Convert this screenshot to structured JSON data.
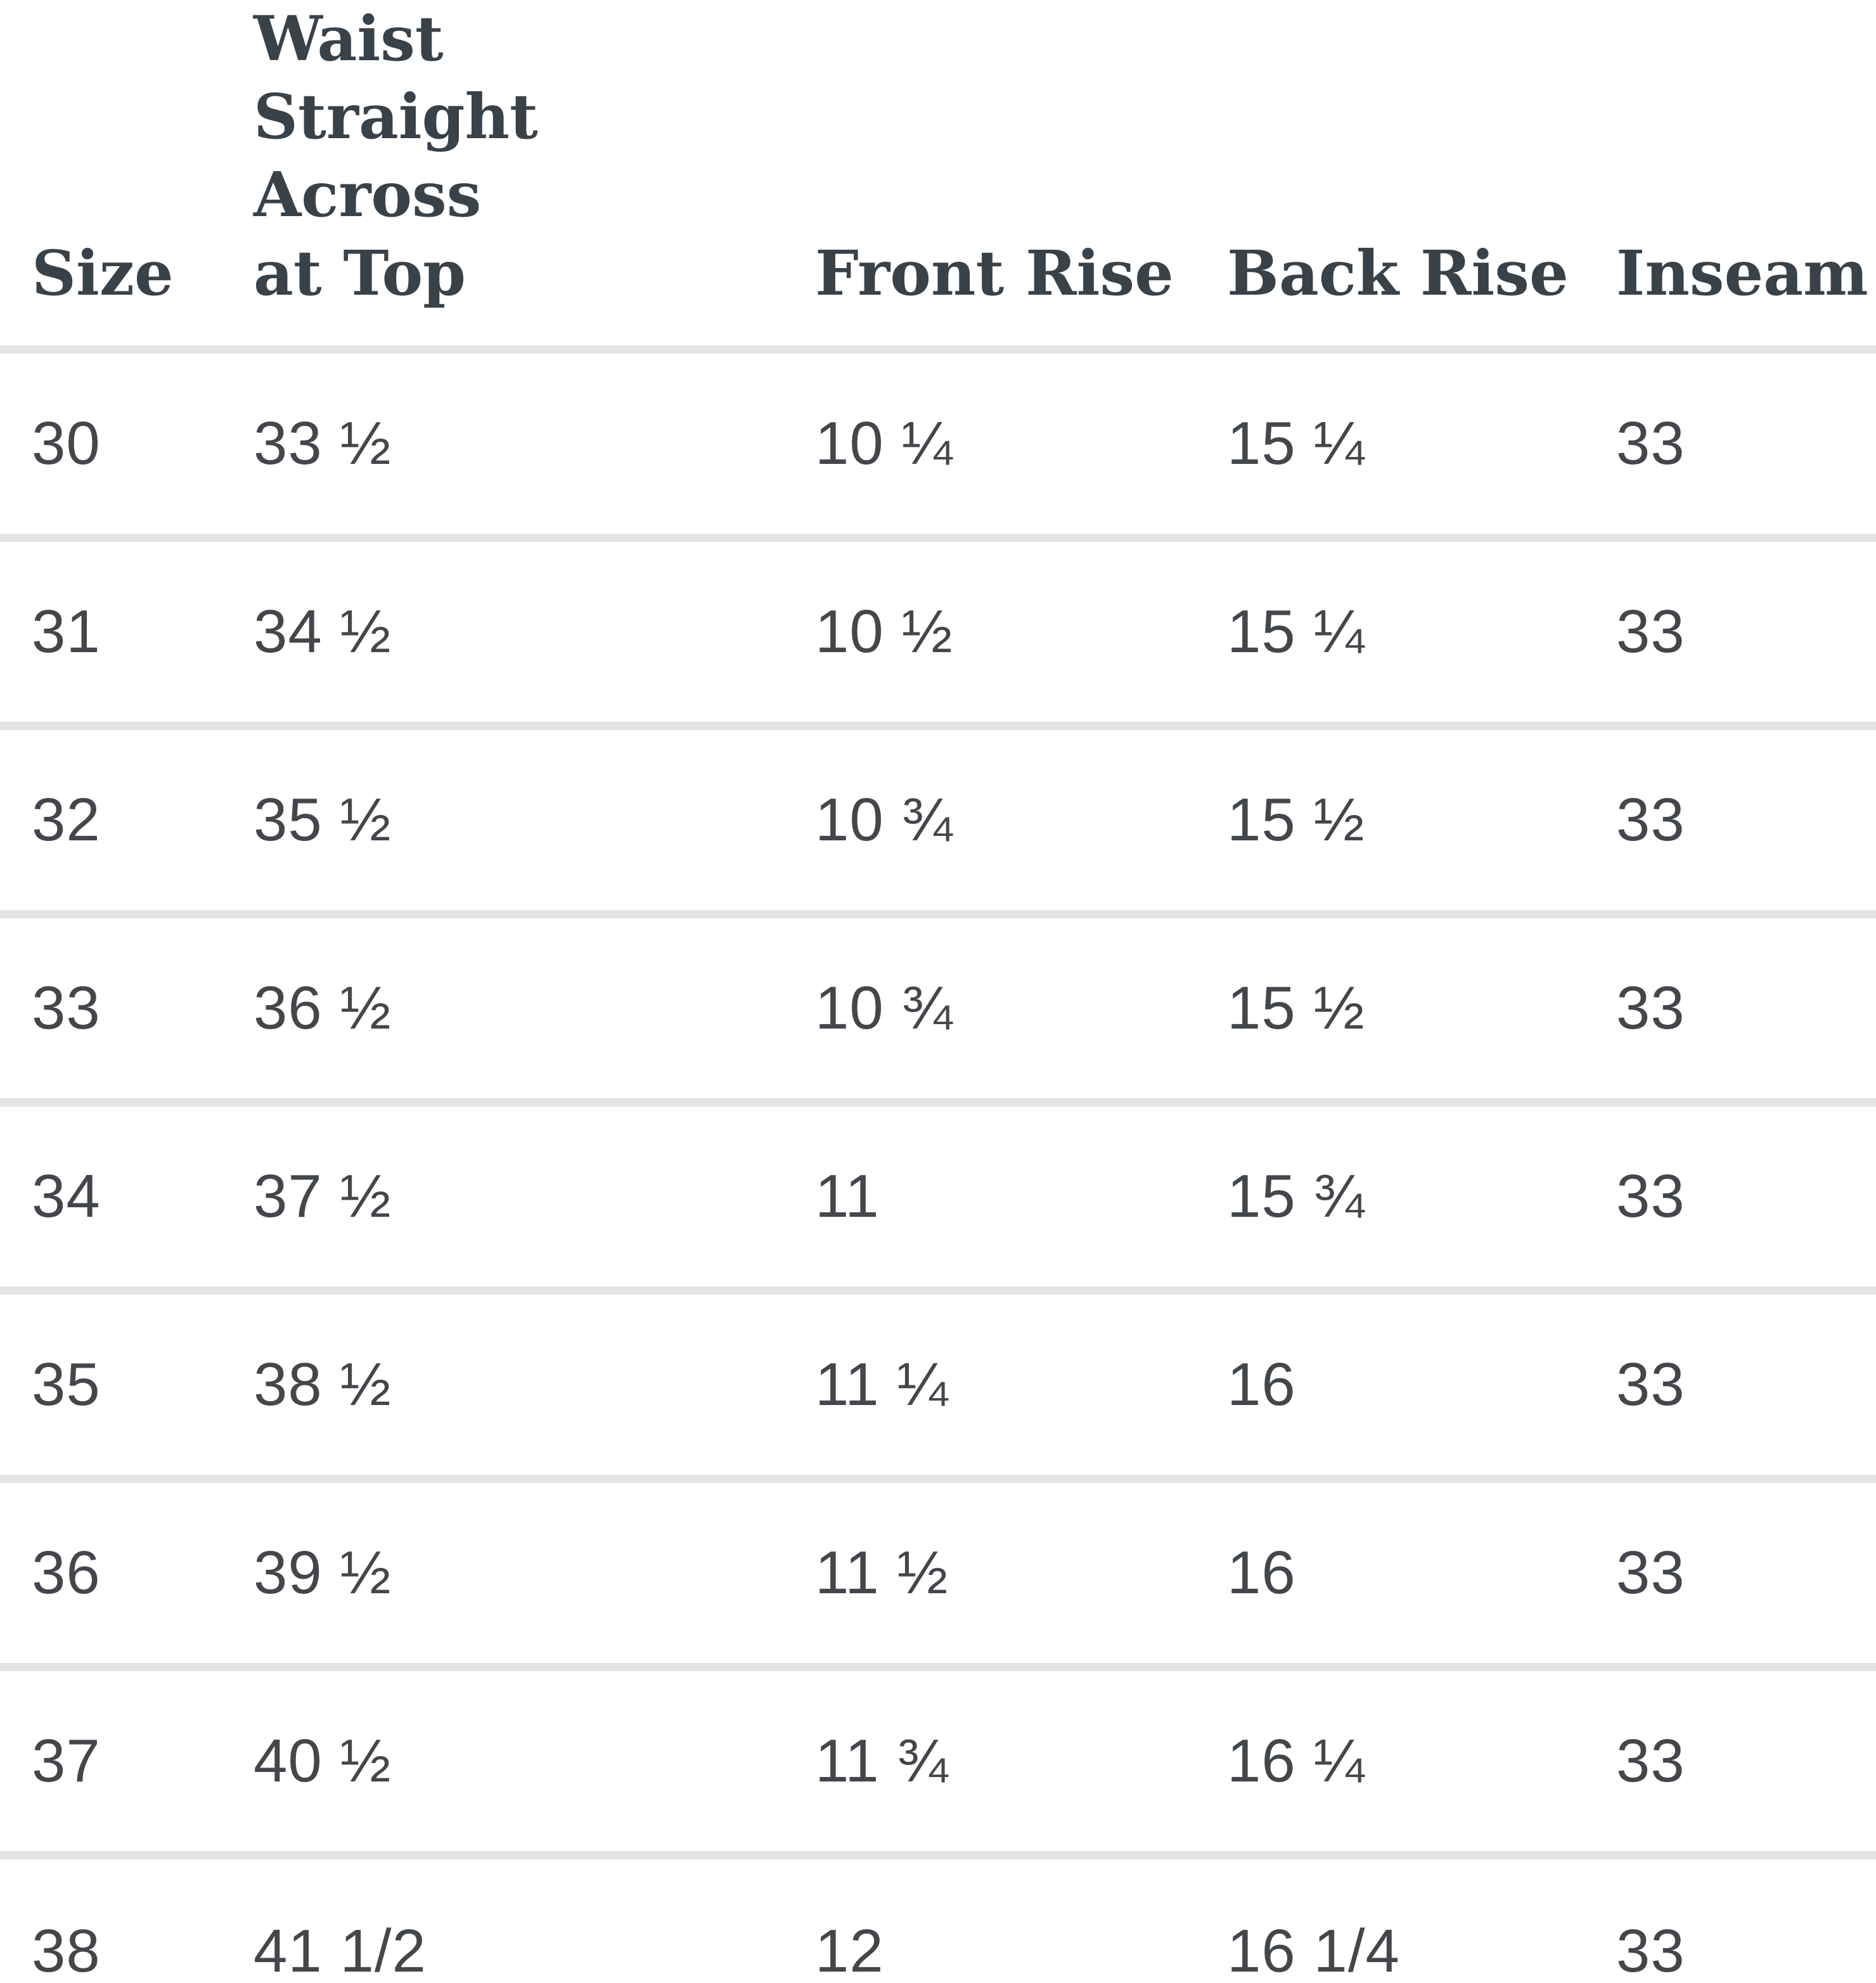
{
  "table": {
    "columns": [
      {
        "label": "Size"
      },
      {
        "label": "Waist\nStraight Across\nat Top"
      },
      {
        "label": "Front Rise"
      },
      {
        "label": "Back Rise"
      },
      {
        "label": "Inseam"
      }
    ],
    "rows": [
      [
        "30",
        "33 ½",
        "10 ¼",
        "15 ¼",
        "33"
      ],
      [
        "31",
        "34 ½",
        "10 ½",
        "15 ¼",
        "33"
      ],
      [
        "32",
        "35 ½",
        "10 ¾",
        "15 ½",
        "33"
      ],
      [
        "33",
        "36 ½",
        "10 ¾",
        "15 ½",
        "33"
      ],
      [
        "34",
        "37 ½",
        "11",
        "15 ¾",
        "33"
      ],
      [
        "35",
        "38 ½",
        "11 ¼",
        "16",
        "33"
      ],
      [
        "36",
        "39 ½",
        "11 ½",
        "16",
        "33"
      ],
      [
        "37",
        "40 ½",
        "11 ¾",
        "16 ¼",
        "33"
      ],
      [
        "38",
        "41 1/2",
        "12",
        "16 1/4",
        "33"
      ]
    ]
  },
  "colors": {
    "text": "#43474b",
    "header_text": "#394149",
    "divider": "#e4e4e4",
    "background": "#ffffff"
  },
  "chart_data": {
    "type": "table",
    "title": "Size chart",
    "columns": [
      "Size",
      "Waist Straight Across at Top",
      "Front Rise",
      "Back Rise",
      "Inseam"
    ],
    "rows": [
      [
        "30",
        "33 ½",
        "10 ¼",
        "15 ¼",
        "33"
      ],
      [
        "31",
        "34 ½",
        "10 ½",
        "15 ¼",
        "33"
      ],
      [
        "32",
        "35 ½",
        "10 ¾",
        "15 ½",
        "33"
      ],
      [
        "33",
        "36 ½",
        "10 ¾",
        "15 ½",
        "33"
      ],
      [
        "34",
        "37 ½",
        "11",
        "15 ¾",
        "33"
      ],
      [
        "35",
        "38 ½",
        "11 ¼",
        "16",
        "33"
      ],
      [
        "36",
        "39 ½",
        "11 ½",
        "16",
        "33"
      ],
      [
        "37",
        "40 ½",
        "11 ¾",
        "16 ¼",
        "33"
      ],
      [
        "38",
        "41 1/2",
        "12",
        "16 1/4",
        "33"
      ]
    ],
    "grid": "horizontal-dividers-only",
    "legend_position": "none"
  }
}
